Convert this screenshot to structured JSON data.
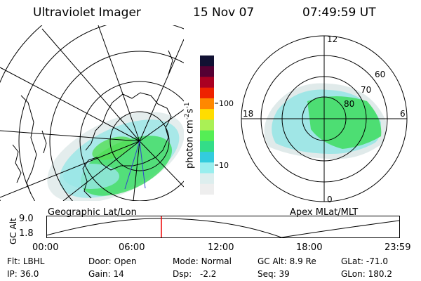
{
  "header": {
    "title": "Ultraviolet Imager",
    "date": "15 Nov 07",
    "time": "07:49:59 UT"
  },
  "panels": {
    "left_label": "Geographic Lat/Lon",
    "right_label": "Apex MLat/MLT"
  },
  "colorbar": {
    "unit_prefix": "photon cm",
    "exp1": "-2",
    "s": "s",
    "exp2": "-1",
    "ticks": [
      "100",
      "10"
    ],
    "colors": [
      "#111133",
      "#550033",
      "#aa0022",
      "#ee2200",
      "#ff8800",
      "#ffdd00",
      "#aaf055",
      "#55ee55",
      "#33dd88",
      "#33ccdd",
      "#99eeee",
      "#ddeeee",
      "#eeeeee"
    ]
  },
  "polar": {
    "mlt_labels": [
      "12",
      "18",
      "6",
      "0"
    ],
    "lat_labels": [
      "60",
      "70",
      "80"
    ]
  },
  "altitude": {
    "axis_label": "GC Alt",
    "y_ticks": [
      "9.0",
      "1.8"
    ],
    "x_ticks": [
      "00:00",
      "06:00",
      "12:00",
      "18:00",
      "23:59"
    ],
    "current_time_fraction": 0.326,
    "marker_color": "#ee0000"
  },
  "status": {
    "filter_label": "Flt:",
    "filter_value": "LBHL",
    "door_label": "Door:",
    "door_value": "Open",
    "mode_label": "Mode:",
    "mode_value": "Normal",
    "gcalt_label": "GC Alt:",
    "gcalt_value": "8.9 Re",
    "glat_label": "GLat:",
    "glat_value": "-71.0",
    "ip_label": "IP:",
    "ip_value": "36.0",
    "gain_label": "Gain:",
    "gain_value": "14",
    "dsp_label": "Dsp:",
    "dsp_value": "-2.2",
    "seq_label": "Seq:",
    "seq_value": "39",
    "glon_label": "GLon:",
    "glon_value": "180.2"
  }
}
